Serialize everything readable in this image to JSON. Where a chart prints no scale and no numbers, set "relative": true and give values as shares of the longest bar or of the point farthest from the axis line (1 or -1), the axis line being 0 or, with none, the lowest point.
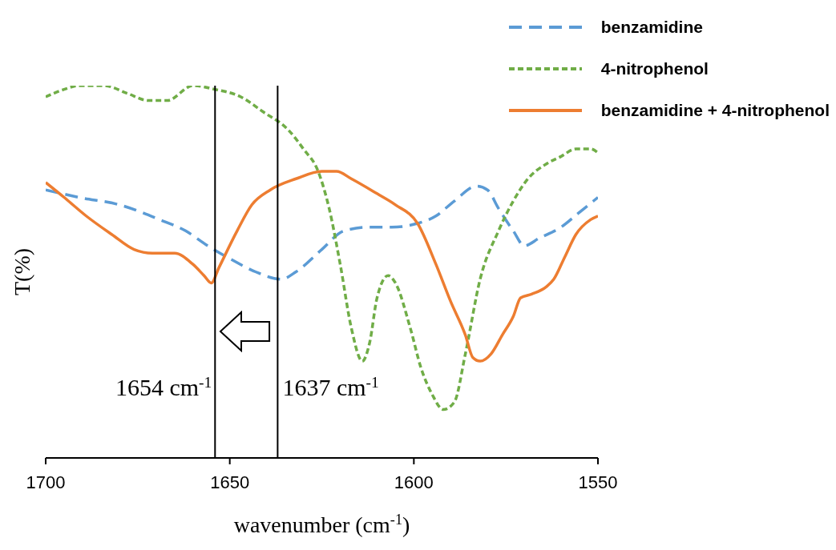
{
  "chart_data": {
    "type": "line",
    "relative": true,
    "xlabel": "wavenumber (cm$^{-1}$)",
    "ylabel": "T(%)",
    "xlim": [
      1700,
      1550
    ],
    "xticks": [
      1700,
      1650,
      1600,
      1550
    ],
    "grid": false,
    "legend": "top right",
    "ref_lines": [
      {
        "axis": "x",
        "value": 1654,
        "label": "1654 cm$^{-1}$",
        "color": "#000000"
      },
      {
        "axis": "x",
        "value": 1637,
        "label": "1637 cm$^{-1}$",
        "color": "#000000"
      }
    ],
    "series": [
      {
        "name": "benzamidine",
        "color": "#5b9bd5",
        "line_style": "dashed",
        "x": [
          1700,
          1691,
          1680,
          1669,
          1662,
          1656,
          1649,
          1643,
          1636,
          1632,
          1625,
          1619,
          1612,
          1606,
          1599,
          1594,
          1589,
          1583,
          1580,
          1577,
          1573,
          1570,
          1566,
          1560,
          1555,
          1550
        ],
        "values": [
          0.72,
          0.7,
          0.68,
          0.64,
          0.61,
          0.57,
          0.53,
          0.5,
          0.48,
          0.5,
          0.56,
          0.61,
          0.62,
          0.62,
          0.63,
          0.65,
          0.69,
          0.73,
          0.72,
          0.67,
          0.61,
          0.57,
          0.59,
          0.62,
          0.66,
          0.7
        ]
      },
      {
        "name": "4-nitrophenol",
        "color": "#70ad47",
        "line_style": "dotted",
        "x": [
          1700,
          1695,
          1691,
          1684,
          1678,
          1672,
          1667,
          1660,
          1654,
          1647,
          1641,
          1634,
          1630,
          1626,
          1623,
          1620,
          1617,
          1614,
          1612,
          1610,
          1607,
          1605,
          1601,
          1598,
          1595,
          1592,
          1589,
          1586,
          1582,
          1577,
          1573,
          1569,
          1564,
          1560,
          1556,
          1552,
          1550
        ],
        "values": [
          0.97,
          0.99,
          1.0,
          1.0,
          0.98,
          0.96,
          0.96,
          1.0,
          0.99,
          0.97,
          0.93,
          0.88,
          0.83,
          0.77,
          0.67,
          0.52,
          0.35,
          0.26,
          0.31,
          0.43,
          0.49,
          0.47,
          0.35,
          0.24,
          0.17,
          0.13,
          0.15,
          0.28,
          0.48,
          0.61,
          0.69,
          0.75,
          0.79,
          0.81,
          0.83,
          0.83,
          0.82
        ]
      },
      {
        "name": "benzamidine + 4-nitrophenol",
        "color": "#ed7d31",
        "line_style": "solid",
        "x": [
          1700,
          1695,
          1689,
          1682,
          1676,
          1671,
          1665,
          1660,
          1657,
          1655,
          1653,
          1648,
          1644,
          1639,
          1632,
          1625,
          1621,
          1617,
          1610,
          1605,
          1599,
          1594,
          1590,
          1586,
          1584,
          1582,
          1579,
          1576,
          1573,
          1571,
          1568,
          1564,
          1562,
          1559,
          1556,
          1552,
          1550
        ],
        "values": [
          0.74,
          0.7,
          0.65,
          0.6,
          0.56,
          0.55,
          0.55,
          0.52,
          0.49,
          0.47,
          0.51,
          0.61,
          0.68,
          0.72,
          0.75,
          0.77,
          0.77,
          0.75,
          0.71,
          0.68,
          0.63,
          0.52,
          0.42,
          0.33,
          0.27,
          0.26,
          0.28,
          0.33,
          0.38,
          0.43,
          0.44,
          0.46,
          0.48,
          0.54,
          0.6,
          0.64,
          0.65
        ]
      }
    ]
  }
}
